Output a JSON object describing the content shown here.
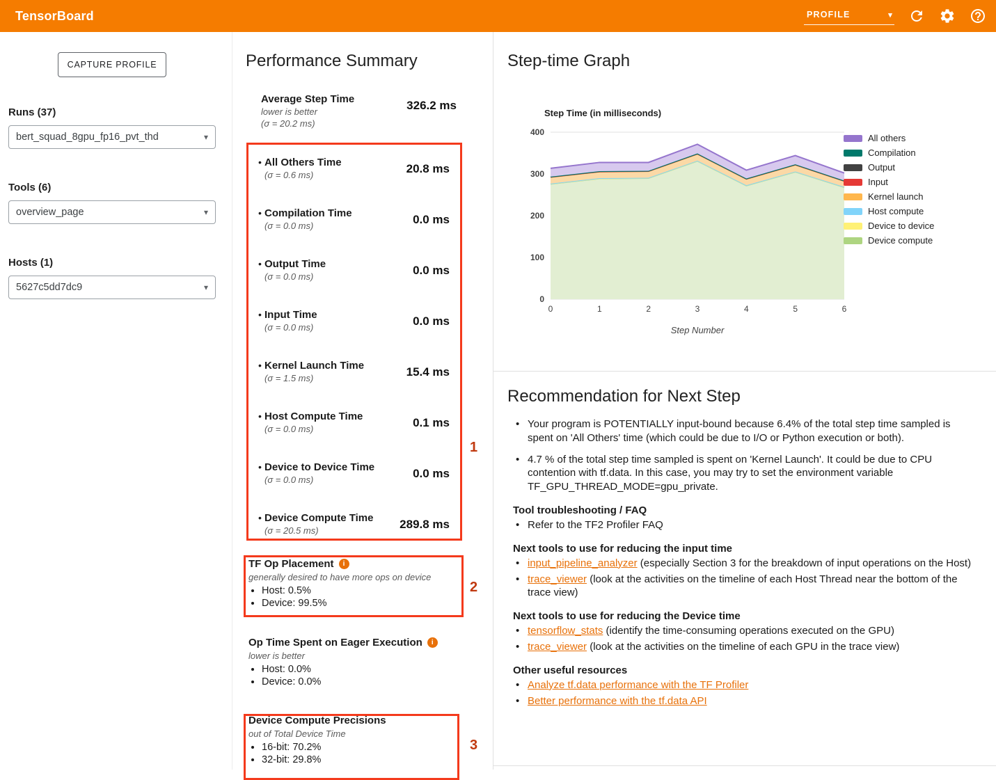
{
  "header": {
    "title": "TensorBoard",
    "nav_selected": "PROFILE"
  },
  "icons": {
    "caret_glyph": "▾",
    "info_glyph": "i",
    "bullet_glyph": "•"
  },
  "sidebar": {
    "capture_button": "CAPTURE PROFILE",
    "runs_label": "Runs (37)",
    "runs_value": "bert_squad_8gpu_fp16_pvt_thd",
    "tools_label": "Tools (6)",
    "tools_value": "overview_page",
    "hosts_label": "Hosts (1)",
    "hosts_value": "5627c5dd7dc9"
  },
  "performance_summary": {
    "title": "Performance Summary",
    "average": {
      "label": "Average Step Time",
      "sub1": "lower is better",
      "sub2": "(σ = 20.2 ms)",
      "value": "326.2 ms"
    },
    "metrics": [
      {
        "label": "All Others Time",
        "sigma": "(σ = 0.6 ms)",
        "value": "20.8 ms"
      },
      {
        "label": "Compilation Time",
        "sigma": "(σ = 0.0 ms)",
        "value": "0.0 ms"
      },
      {
        "label": "Output Time",
        "sigma": "(σ = 0.0 ms)",
        "value": "0.0 ms"
      },
      {
        "label": "Input Time",
        "sigma": "(σ = 0.0 ms)",
        "value": "0.0 ms"
      },
      {
        "label": "Kernel Launch Time",
        "sigma": "(σ = 1.5 ms)",
        "value": "15.4 ms"
      },
      {
        "label": "Host Compute Time",
        "sigma": "(σ = 0.0 ms)",
        "value": "0.1 ms"
      },
      {
        "label": "Device to Device Time",
        "sigma": "(σ = 0.0 ms)",
        "value": "0.0 ms"
      },
      {
        "label": "Device Compute Time",
        "sigma": "(σ = 20.5 ms)",
        "value": "289.8 ms"
      }
    ],
    "tf_op_placement": {
      "title": "TF Op Placement",
      "subtitle": "generally desired to have more ops on device",
      "items": [
        "Host: 0.5%",
        "Device: 99.5%"
      ]
    },
    "eager": {
      "title": "Op Time Spent on Eager Execution",
      "subtitle": "lower is better",
      "items": [
        "Host: 0.0%",
        "Device: 0.0%"
      ]
    },
    "precisions": {
      "title": "Device Compute Precisions",
      "subtitle": "out of Total Device Time",
      "items": [
        "16-bit: 70.2%",
        "32-bit: 29.8%"
      ]
    }
  },
  "annotations": {
    "n1": "1",
    "n2": "2",
    "n3": "3"
  },
  "step_time_graph": {
    "title": "Step-time Graph"
  },
  "chart_data": {
    "type": "area",
    "stacked": true,
    "title": "Step Time (in milliseconds)",
    "xlabel": "Step Number",
    "ylabel": "",
    "x": [
      0,
      1,
      2,
      3,
      4,
      5,
      6
    ],
    "ylim": [
      0,
      400
    ],
    "yticks": [
      0,
      100,
      200,
      300,
      400
    ],
    "legend_position": "right",
    "series": [
      {
        "name": "Device compute",
        "color": "#aed581",
        "fill": "#e2eed2",
        "values": [
          276,
          289,
          290,
          331,
          272,
          305,
          268
        ]
      },
      {
        "name": "Device to device",
        "color": "#fff176",
        "fill": "#fff9c4",
        "values": [
          0.4,
          0.4,
          0.4,
          0.4,
          0.4,
          0.4,
          0.4
        ]
      },
      {
        "name": "Host compute",
        "color": "#81d4fa",
        "fill": "#e1f5fe",
        "values": [
          0.5,
          0.5,
          0.5,
          0.5,
          0.5,
          0.5,
          0.5
        ]
      },
      {
        "name": "Kernel launch",
        "color": "#ffb74d",
        "fill": "#fbd9a6",
        "values": [
          15.5,
          15.5,
          15.5,
          16,
          15,
          16,
          14
        ]
      },
      {
        "name": "Input",
        "color": "#e53935",
        "fill": "#ffcdd2",
        "values": [
          0.3,
          0.3,
          0.3,
          0.3,
          0.3,
          0.3,
          0.3
        ]
      },
      {
        "name": "Output",
        "color": "#424242",
        "fill": "#bdbdbd",
        "values": [
          0.5,
          0.5,
          0.5,
          0.5,
          0.5,
          0.5,
          0.5
        ]
      },
      {
        "name": "Compilation",
        "color": "#00796b",
        "fill": "#b2dfdb",
        "values": [
          0.4,
          0.4,
          0.4,
          0.4,
          0.4,
          0.4,
          0.4
        ]
      },
      {
        "name": "All others",
        "color": "#9575cd",
        "fill": "#d7c9ee",
        "values": [
          20,
          21,
          20,
          22,
          20,
          21,
          18
        ]
      }
    ]
  },
  "recommendation": {
    "title": "Recommendation for Next Step",
    "intro_bullets": [
      "Your program is POTENTIALLY input-bound because 6.4% of the total step time sampled is spent on 'All Others' time (which could be due to I/O or Python execution or both).",
      "4.7 % of the total step time sampled is spent on 'Kernel Launch'. It could be due to CPU contention with tf.data. In this case, you may try to set the environment variable TF_GPU_THREAD_MODE=gpu_private."
    ],
    "sections": [
      {
        "heading": "Tool troubleshooting / FAQ",
        "items": [
          {
            "pre": "Refer to the TF2 Profiler FAQ",
            "link": "",
            "post": ""
          }
        ]
      },
      {
        "heading": "Next tools to use for reducing the input time",
        "items": [
          {
            "pre": "",
            "link": "input_pipeline_analyzer",
            "post": " (especially Section 3 for the breakdown of input operations on the Host)"
          },
          {
            "pre": "",
            "link": "trace_viewer",
            "post": " (look at the activities on the timeline of each Host Thread near the bottom of the trace view)"
          }
        ]
      },
      {
        "heading": "Next tools to use for reducing the Device time",
        "items": [
          {
            "pre": "",
            "link": "tensorflow_stats",
            "post": " (identify the time-consuming operations executed on the GPU)"
          },
          {
            "pre": "",
            "link": "trace_viewer",
            "post": " (look at the activities on the timeline of each GPU in the trace view)"
          }
        ]
      },
      {
        "heading": "Other useful resources",
        "items": [
          {
            "pre": "",
            "link": "Analyze tf.data performance with the TF Profiler",
            "post": ""
          },
          {
            "pre": "",
            "link": "Better performance with the tf.data API",
            "post": ""
          }
        ]
      }
    ]
  }
}
